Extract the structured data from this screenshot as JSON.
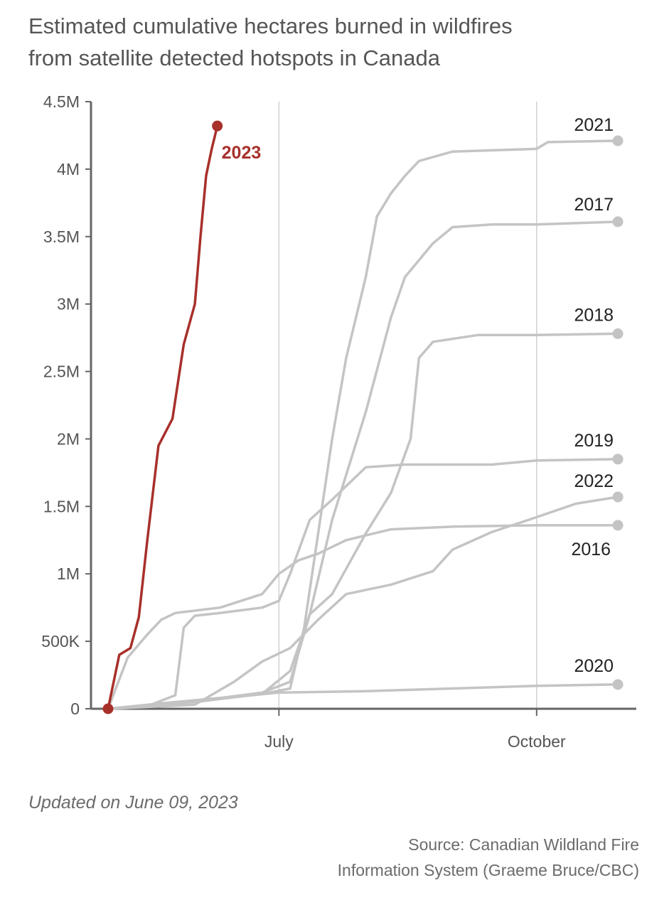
{
  "title_lines": [
    "Estimated cumulative hectares burned in wildfires",
    "from satellite detected hotspots in Canada"
  ],
  "footnote": "Updated on June 09, 2023",
  "source_lines": [
    "Source: Canadian Wildland Fire",
    "Information System (Graeme Bruce/CBC)"
  ],
  "colors": {
    "highlight": "#a8302b",
    "other": "#c4c4c4",
    "axis": "#666666",
    "gridline": "#d0d0d0",
    "text": "#555555",
    "label": "#222222"
  },
  "chart_data": {
    "type": "line",
    "ylim": [
      0,
      4500000
    ],
    "y_ticks": [
      {
        "value": 0,
        "label": "0"
      },
      {
        "value": 500000,
        "label": "500K"
      },
      {
        "value": 1000000,
        "label": "1M"
      },
      {
        "value": 1500000,
        "label": "1.5M"
      },
      {
        "value": 2000000,
        "label": "2M"
      },
      {
        "value": 2500000,
        "label": "2.5M"
      },
      {
        "value": 3000000,
        "label": "3M"
      },
      {
        "value": 3500000,
        "label": "3.5M"
      },
      {
        "value": 4000000,
        "label": "4M"
      },
      {
        "value": 4500000,
        "label": "4.5M"
      }
    ],
    "x_ticks": [
      {
        "month": 7,
        "day": 1,
        "label": "July"
      },
      {
        "month": 10,
        "day": 1,
        "label": "October"
      }
    ],
    "grid_x": true,
    "series": [
      {
        "name": "2016",
        "highlight": false,
        "points": [
          [
            "05-01",
            0
          ],
          [
            "05-08",
            380000
          ],
          [
            "05-15",
            550000
          ],
          [
            "05-20",
            660000
          ],
          [
            "05-25",
            710000
          ],
          [
            "06-10",
            750000
          ],
          [
            "06-25",
            850000
          ],
          [
            "07-01",
            1000000
          ],
          [
            "07-08",
            1100000
          ],
          [
            "07-15",
            1150000
          ],
          [
            "07-25",
            1250000
          ],
          [
            "08-10",
            1330000
          ],
          [
            "09-01",
            1350000
          ],
          [
            "10-01",
            1360000
          ],
          [
            "10-30",
            1360000
          ]
        ]
      },
      {
        "name": "2017",
        "highlight": false,
        "points": [
          [
            "05-01",
            0
          ],
          [
            "06-01",
            50000
          ],
          [
            "06-25",
            110000
          ],
          [
            "07-05",
            280000
          ],
          [
            "07-12",
            700000
          ],
          [
            "07-20",
            1400000
          ],
          [
            "08-01",
            2200000
          ],
          [
            "08-10",
            2900000
          ],
          [
            "08-15",
            3200000
          ],
          [
            "08-25",
            3450000
          ],
          [
            "09-01",
            3570000
          ],
          [
            "09-15",
            3590000
          ],
          [
            "10-01",
            3590000
          ],
          [
            "10-30",
            3610000
          ]
        ]
      },
      {
        "name": "2018",
        "highlight": false,
        "points": [
          [
            "05-01",
            0
          ],
          [
            "05-20",
            40000
          ],
          [
            "06-10",
            80000
          ],
          [
            "06-25",
            120000
          ],
          [
            "07-05",
            200000
          ],
          [
            "07-12",
            700000
          ],
          [
            "07-20",
            850000
          ],
          [
            "08-01",
            1300000
          ],
          [
            "08-10",
            1600000
          ],
          [
            "08-17",
            2000000
          ],
          [
            "08-20",
            2600000
          ],
          [
            "08-25",
            2720000
          ],
          [
            "09-10",
            2770000
          ],
          [
            "10-01",
            2770000
          ],
          [
            "10-30",
            2780000
          ]
        ]
      },
      {
        "name": "2019",
        "highlight": false,
        "points": [
          [
            "05-01",
            0
          ],
          [
            "05-15",
            20000
          ],
          [
            "05-25",
            100000
          ],
          [
            "05-28",
            600000
          ],
          [
            "06-01",
            690000
          ],
          [
            "06-10",
            710000
          ],
          [
            "06-25",
            750000
          ],
          [
            "07-01",
            800000
          ],
          [
            "07-05",
            1000000
          ],
          [
            "07-12",
            1400000
          ],
          [
            "07-20",
            1550000
          ],
          [
            "08-01",
            1790000
          ],
          [
            "08-15",
            1810000
          ],
          [
            "09-15",
            1810000
          ],
          [
            "10-01",
            1840000
          ],
          [
            "10-30",
            1850000
          ]
        ]
      },
      {
        "name": "2020",
        "highlight": false,
        "points": [
          [
            "05-01",
            0
          ],
          [
            "06-01",
            60000
          ],
          [
            "07-01",
            120000
          ],
          [
            "08-01",
            130000
          ],
          [
            "09-01",
            150000
          ],
          [
            "10-01",
            170000
          ],
          [
            "10-30",
            180000
          ]
        ]
      },
      {
        "name": "2021",
        "highlight": false,
        "points": [
          [
            "05-01",
            0
          ],
          [
            "06-01",
            60000
          ],
          [
            "06-25",
            110000
          ],
          [
            "07-05",
            150000
          ],
          [
            "07-10",
            600000
          ],
          [
            "07-15",
            1300000
          ],
          [
            "07-20",
            2000000
          ],
          [
            "07-25",
            2600000
          ],
          [
            "08-01",
            3200000
          ],
          [
            "08-05",
            3650000
          ],
          [
            "08-10",
            3820000
          ],
          [
            "08-15",
            3950000
          ],
          [
            "08-20",
            4060000
          ],
          [
            "09-01",
            4130000
          ],
          [
            "10-01",
            4150000
          ],
          [
            "10-05",
            4200000
          ],
          [
            "10-30",
            4210000
          ]
        ]
      },
      {
        "name": "2022",
        "highlight": false,
        "points": [
          [
            "05-01",
            0
          ],
          [
            "06-01",
            30000
          ],
          [
            "06-15",
            200000
          ],
          [
            "06-25",
            350000
          ],
          [
            "07-05",
            450000
          ],
          [
            "07-15",
            660000
          ],
          [
            "07-25",
            850000
          ],
          [
            "08-10",
            920000
          ],
          [
            "08-25",
            1020000
          ],
          [
            "09-01",
            1180000
          ],
          [
            "09-15",
            1310000
          ],
          [
            "10-01",
            1420000
          ],
          [
            "10-15",
            1520000
          ],
          [
            "10-30",
            1570000
          ]
        ]
      },
      {
        "name": "2023",
        "highlight": true,
        "points": [
          [
            "05-01",
            0
          ],
          [
            "05-05",
            400000
          ],
          [
            "05-09",
            450000
          ],
          [
            "05-12",
            680000
          ],
          [
            "05-15",
            1250000
          ],
          [
            "05-19",
            1950000
          ],
          [
            "05-24",
            2150000
          ],
          [
            "05-28",
            2700000
          ],
          [
            "06-01",
            3000000
          ],
          [
            "06-03",
            3500000
          ],
          [
            "06-05",
            3950000
          ],
          [
            "06-07",
            4150000
          ],
          [
            "06-09",
            4320000
          ]
        ]
      }
    ]
  }
}
